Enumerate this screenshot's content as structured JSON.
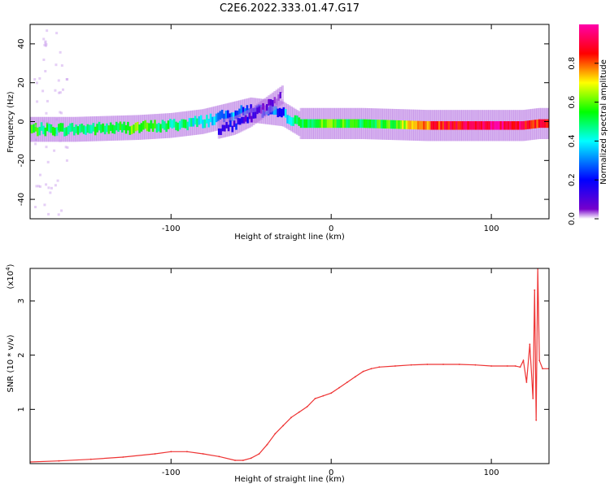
{
  "title": "C2E6.2022.333.01.47.G17",
  "chart_data": [
    {
      "type": "heatmap",
      "xlabel": "Height of straight line (km)",
      "ylabel": "Frequency (Hz)",
      "xlim": [
        -188,
        136
      ],
      "ylim": [
        -50,
        50
      ],
      "xticks": [
        -100,
        0,
        100
      ],
      "xtick_labels": [
        "-100",
        "0",
        "100"
      ],
      "yticks": [
        -40,
        -20,
        0,
        20,
        40
      ],
      "ytick_labels": [
        "-40",
        "-20",
        "0",
        "20",
        "40"
      ],
      "grid": false,
      "colorbar": {
        "label": "Normalized spectral amplitude",
        "range": [
          0,
          1
        ],
        "ticks": [
          0.0,
          0.2,
          0.4,
          0.6,
          0.8
        ],
        "tick_labels": [
          "0.0",
          "0.2",
          "0.4",
          "0.6",
          "0.8"
        ],
        "colormap": [
          "#ffffff",
          "#7700cc",
          "#0000ff",
          "#00ffff",
          "#00ff00",
          "#ffff00",
          "#ff0000",
          "#ff00aa"
        ]
      },
      "ridge": {
        "x": [
          -188,
          -160,
          -140,
          -120,
          -100,
          -80,
          -70,
          -60,
          -50,
          -40,
          -30,
          -20,
          0,
          20,
          40,
          60,
          80,
          100,
          120,
          130,
          136
        ],
        "y": [
          -4,
          -4,
          -3.5,
          -3,
          -2,
          0,
          2,
          4,
          6,
          5,
          4,
          -1,
          -1,
          -1,
          -1.5,
          -2,
          -2,
          -2,
          -2,
          -1,
          -1
        ],
        "amplitude": [
          0.55,
          0.5,
          0.55,
          0.6,
          0.5,
          0.45,
          0.4,
          0.35,
          0.3,
          0.3,
          0.35,
          0.55,
          0.6,
          0.55,
          0.6,
          0.8,
          0.9,
          0.95,
          0.9,
          0.85,
          0.9
        ]
      },
      "branch": {
        "x": [
          -70,
          -60,
          -50,
          -40,
          -30
        ],
        "y": [
          -4,
          -2,
          2,
          8,
          14
        ],
        "amplitude": [
          0.3,
          0.25,
          0.2,
          0.15,
          0.1
        ]
      }
    },
    {
      "type": "line",
      "xlabel": "Height of straight line (km)",
      "ylabel": "SNR (10 * v/v)",
      "yscale_label": "(x10",
      "yscale_exp": "4",
      "yscale_close": ")",
      "xlim": [
        -188,
        136
      ],
      "ylim": [
        0,
        3.6
      ],
      "xticks": [
        -100,
        0,
        100
      ],
      "xtick_labels": [
        "-100",
        "0",
        "100"
      ],
      "yticks": [
        1,
        2,
        3
      ],
      "ytick_labels": [
        "1",
        "2",
        "3"
      ],
      "grid": false,
      "series": [
        {
          "color": "#ee3333",
          "x": [
            -188,
            -170,
            -150,
            -130,
            -110,
            -100,
            -90,
            -80,
            -70,
            -60,
            -55,
            -50,
            -45,
            -40,
            -35,
            -30,
            -25,
            -20,
            -15,
            -10,
            -5,
            0,
            5,
            10,
            15,
            20,
            25,
            30,
            40,
            50,
            60,
            70,
            80,
            90,
            100,
            110,
            115,
            118,
            120,
            122,
            124,
            126,
            127,
            128,
            129,
            130,
            132,
            136
          ],
          "y": [
            0.03,
            0.05,
            0.08,
            0.12,
            0.18,
            0.22,
            0.22,
            0.18,
            0.13,
            0.06,
            0.06,
            0.1,
            0.18,
            0.35,
            0.55,
            0.7,
            0.85,
            0.95,
            1.05,
            1.2,
            1.25,
            1.3,
            1.4,
            1.5,
            1.6,
            1.7,
            1.75,
            1.78,
            1.8,
            1.82,
            1.83,
            1.83,
            1.83,
            1.82,
            1.8,
            1.8,
            1.8,
            1.78,
            1.9,
            1.5,
            2.2,
            1.2,
            3.2,
            0.8,
            3.6,
            1.9,
            1.75,
            1.75
          ]
        }
      ]
    }
  ]
}
